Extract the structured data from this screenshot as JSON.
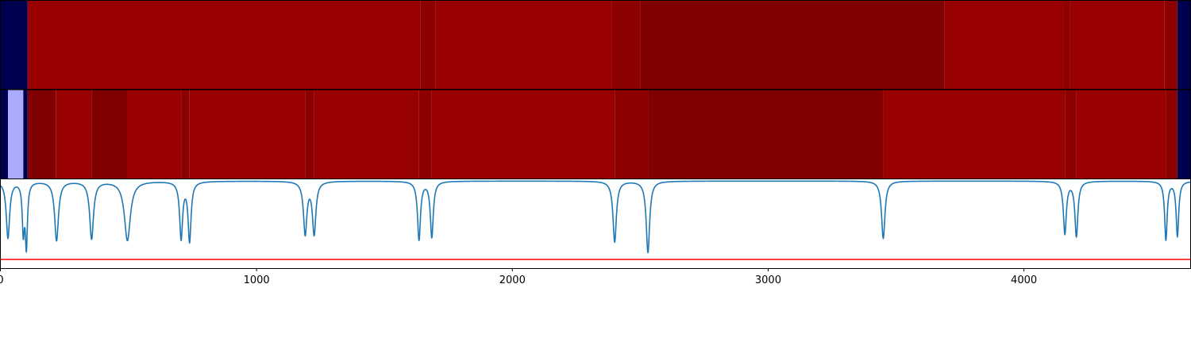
{
  "chart_data": [
    {
      "type": "heatmap",
      "colors": {
        "dark_navy": "#000050",
        "red": "#990000",
        "dark_red": "#800000",
        "mid_red": "#8c0000",
        "light_blue": "#aaaaff"
      },
      "x_range": [
        0,
        4650
      ],
      "segments": [
        {
          "start": 0,
          "end": 105,
          "color": "#000050"
        },
        {
          "start": 105,
          "end": 1640,
          "color": "#990000"
        },
        {
          "start": 1640,
          "end": 1700,
          "color": "#8c0000"
        },
        {
          "start": 1700,
          "end": 2390,
          "color": "#990000"
        },
        {
          "start": 2390,
          "end": 2500,
          "color": "#8c0000"
        },
        {
          "start": 2500,
          "end": 3690,
          "color": "#800000"
        },
        {
          "start": 3690,
          "end": 4155,
          "color": "#990000"
        },
        {
          "start": 4155,
          "end": 4180,
          "color": "#8c0000"
        },
        {
          "start": 4180,
          "end": 4550,
          "color": "#990000"
        },
        {
          "start": 4550,
          "end": 4600,
          "color": "#8c0000"
        },
        {
          "start": 4600,
          "end": 4650,
          "color": "#000050"
        }
      ]
    },
    {
      "type": "heatmap",
      "x_range": [
        0,
        4650
      ],
      "segments": [
        {
          "start": 0,
          "end": 28,
          "color": "#000050"
        },
        {
          "start": 28,
          "end": 88,
          "color": "#aaaaff"
        },
        {
          "start": 88,
          "end": 105,
          "color": "#000050"
        },
        {
          "start": 105,
          "end": 215,
          "color": "#800000"
        },
        {
          "start": 215,
          "end": 355,
          "color": "#990000"
        },
        {
          "start": 355,
          "end": 495,
          "color": "#800000"
        },
        {
          "start": 495,
          "end": 705,
          "color": "#990000"
        },
        {
          "start": 705,
          "end": 738,
          "color": "#8c0000"
        },
        {
          "start": 738,
          "end": 1190,
          "color": "#990000"
        },
        {
          "start": 1190,
          "end": 1225,
          "color": "#8c0000"
        },
        {
          "start": 1225,
          "end": 1635,
          "color": "#990000"
        },
        {
          "start": 1635,
          "end": 1685,
          "color": "#8c0000"
        },
        {
          "start": 1685,
          "end": 2400,
          "color": "#990000"
        },
        {
          "start": 2400,
          "end": 2530,
          "color": "#8c0000"
        },
        {
          "start": 2530,
          "end": 3450,
          "color": "#800000"
        },
        {
          "start": 3450,
          "end": 4160,
          "color": "#990000"
        },
        {
          "start": 4160,
          "end": 4205,
          "color": "#8c0000"
        },
        {
          "start": 4205,
          "end": 4555,
          "color": "#990000"
        },
        {
          "start": 4555,
          "end": 4600,
          "color": "#8c0000"
        },
        {
          "start": 4600,
          "end": 4650,
          "color": "#000050"
        }
      ]
    },
    {
      "type": "line",
      "xlim": [
        0,
        4650
      ],
      "ylim": [
        -1.0,
        0.02
      ],
      "x_ticks": [
        0,
        1000,
        2000,
        3000,
        4000
      ],
      "x_tick_labels": [
        "0",
        "1000",
        "2000",
        "3000",
        "4000"
      ],
      "threshold": {
        "value": -0.9,
        "color": "#ff0000"
      },
      "line_color": "#1f77b4",
      "dips": [
        {
          "x": 28,
          "depth": 0.65,
          "width": 8
        },
        {
          "x": 88,
          "depth": 0.55,
          "width": 5
        },
        {
          "x": 100,
          "depth": 0.72,
          "width": 5
        },
        {
          "x": 218,
          "depth": 0.68,
          "width": 9
        },
        {
          "x": 355,
          "depth": 0.66,
          "width": 9
        },
        {
          "x": 495,
          "depth": 0.68,
          "width": 14
        },
        {
          "x": 705,
          "depth": 0.65,
          "width": 7
        },
        {
          "x": 738,
          "depth": 0.68,
          "width": 7
        },
        {
          "x": 1190,
          "depth": 0.6,
          "width": 8
        },
        {
          "x": 1225,
          "depth": 0.6,
          "width": 8
        },
        {
          "x": 1635,
          "depth": 0.67,
          "width": 7
        },
        {
          "x": 1685,
          "depth": 0.64,
          "width": 7
        },
        {
          "x": 2400,
          "depth": 0.7,
          "width": 8
        },
        {
          "x": 2530,
          "depth": 0.82,
          "width": 8
        },
        {
          "x": 3450,
          "depth": 0.66,
          "width": 8
        },
        {
          "x": 4160,
          "depth": 0.6,
          "width": 7
        },
        {
          "x": 4205,
          "depth": 0.63,
          "width": 7
        },
        {
          "x": 4555,
          "depth": 0.67,
          "width": 6
        },
        {
          "x": 4600,
          "depth": 0.63,
          "width": 6
        }
      ]
    }
  ]
}
